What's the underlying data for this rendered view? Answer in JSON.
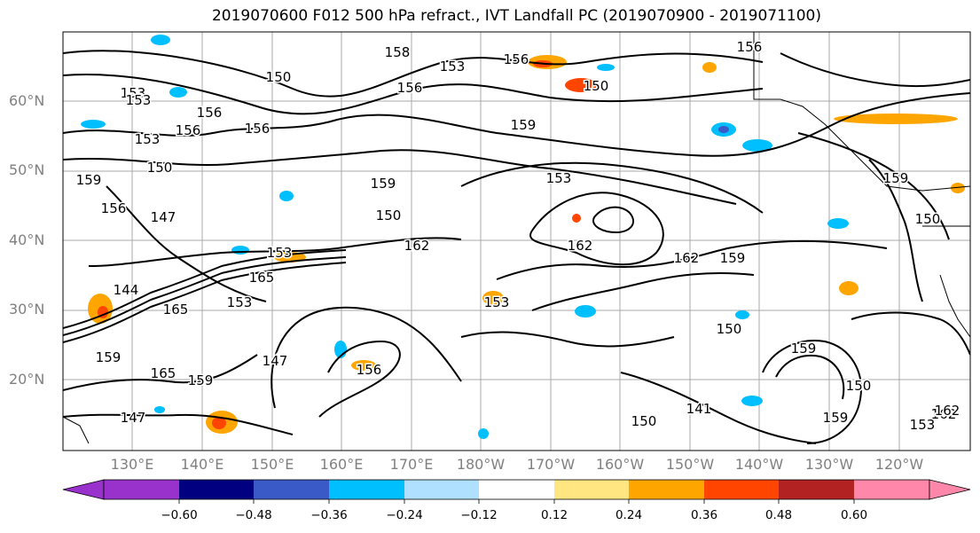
{
  "title": "2019070600 F012 500 hPa refract., IVT Landfall PC (2019070900 - 2019071100)",
  "lat_labels": [
    "60°N",
    "50°N",
    "40°N",
    "30°N",
    "20°N"
  ],
  "lon_labels": [
    "130°E",
    "140°E",
    "150°E",
    "160°E",
    "170°E",
    "180°W",
    "170°W",
    "160°W",
    "150°W",
    "140°W",
    "130°W",
    "120°W"
  ],
  "contour_labels": [
    "158",
    "153",
    "156",
    "150",
    "156",
    "153",
    "156",
    "150",
    "159",
    "153",
    "156",
    "156",
    "153",
    "150",
    "159",
    "156",
    "159",
    "153",
    "147",
    "162",
    "150",
    "153",
    "162",
    "162",
    "159",
    "165",
    "144",
    "165",
    "153",
    "147",
    "153",
    "150",
    "159",
    "156",
    "159",
    "165",
    "159",
    "150",
    "147",
    "162",
    "141",
    "150",
    "159",
    "150",
    "153",
    "156",
    "159",
    "162"
  ],
  "colorbar": {
    "tick_labels": [
      "−0.60",
      "−0.48",
      "−0.36",
      "−0.24",
      "−0.12",
      "0.12",
      "0.24",
      "0.36",
      "0.48",
      "0.60"
    ],
    "colors": [
      "#9932cc",
      "#000080",
      "#3a5bc7",
      "#00bfff",
      "#b0e0ff",
      "#ffffff",
      "#ffe680",
      "#ffa500",
      "#ff4500",
      "#b22222",
      "#ff88aa"
    ]
  }
}
